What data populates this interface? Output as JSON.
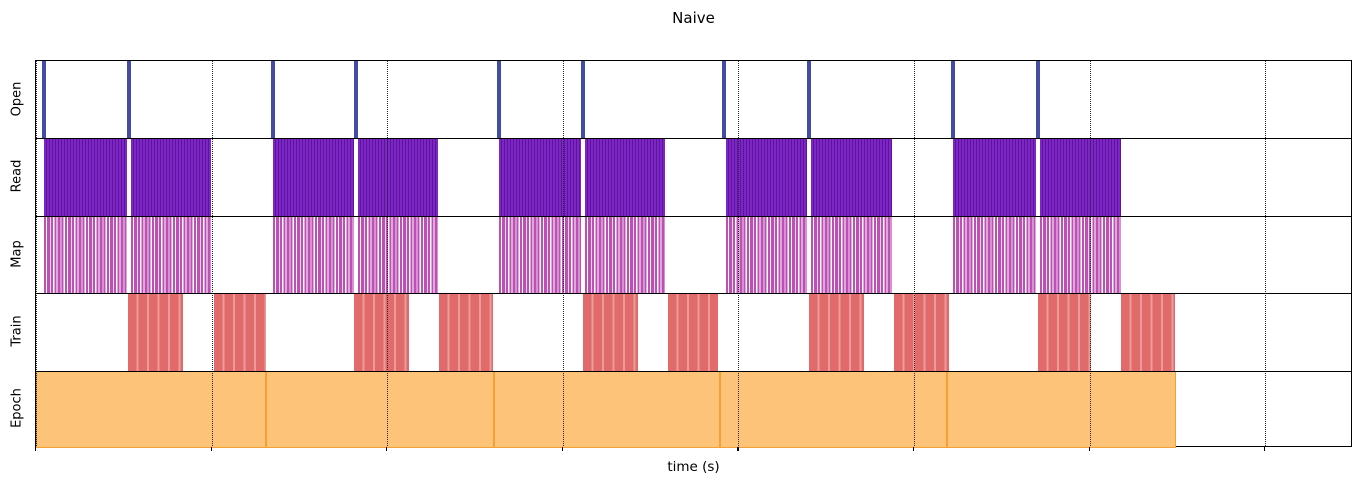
{
  "figure": {
    "title": "Naive",
    "xlabel": "time (s)"
  },
  "lanes": [
    "Open",
    "Read",
    "Map",
    "Train",
    "Epoch"
  ],
  "colors": {
    "open_event": "#454ca4",
    "read_fill": "#7c26c6",
    "read_stripe": "#5e129e",
    "map_fill": "#bc50b4",
    "train_fill": "#e16b6b",
    "train_stripe": "#ec9b9b",
    "epoch_fill": "#fdc379",
    "epoch_border": "#f5a033",
    "grid": "#2a2a2a",
    "axis": "#000000"
  },
  "chart_data": {
    "type": "bar",
    "subtype": "broken-bar timeline (gantt-style, matplotlib)",
    "title": "Naive",
    "xlabel": "time (s)",
    "ylabel": "",
    "x_units": "grid-tick units (axis ticks shown without numeric labels)",
    "xlim": [
      0,
      7.5
    ],
    "xticks": [
      0,
      1,
      2,
      3,
      4,
      5,
      6,
      7
    ],
    "xtick_labels": [
      "",
      "",
      "",
      "",
      "",
      "",
      "",
      ""
    ],
    "grid": "vertical dotted lines at each x tick",
    "legend": "none",
    "rows": [
      {
        "label": "Open",
        "style": "instant-event-bars",
        "events": [
          0.046,
          0.53,
          1.35,
          1.823,
          2.637,
          3.115,
          3.919,
          4.403,
          5.223,
          5.707
        ]
      },
      {
        "label": "Read",
        "style": "dense-purple-stripe-blocks",
        "intervals": [
          [
            0.046,
            0.518
          ],
          [
            0.541,
            0.997
          ],
          [
            1.35,
            1.811
          ],
          [
            1.834,
            2.289
          ],
          [
            2.637,
            3.104
          ],
          [
            3.127,
            3.582
          ],
          [
            3.93,
            4.391
          ],
          [
            4.414,
            4.875
          ],
          [
            5.223,
            5.696
          ],
          [
            5.718,
            6.18
          ]
        ]
      },
      {
        "label": "Map",
        "style": "barcode-orchid-stripe-blocks",
        "intervals": [
          [
            0.046,
            0.518
          ],
          [
            0.541,
            0.997
          ],
          [
            1.35,
            1.811
          ],
          [
            1.834,
            2.289
          ],
          [
            2.637,
            3.104
          ],
          [
            3.127,
            3.582
          ],
          [
            3.93,
            4.391
          ],
          [
            4.414,
            4.875
          ],
          [
            5.223,
            5.696
          ],
          [
            5.718,
            6.18
          ]
        ]
      },
      {
        "label": "Train",
        "style": "solid-red-blocks",
        "intervals": [
          [
            0.524,
            0.837
          ],
          [
            1.014,
            1.31
          ],
          [
            1.811,
            2.124
          ],
          [
            2.295,
            2.602
          ],
          [
            3.115,
            3.429
          ],
          [
            3.6,
            3.884
          ],
          [
            4.403,
            4.716
          ],
          [
            4.887,
            5.2
          ],
          [
            5.707,
            6.009
          ],
          [
            6.18,
            6.487
          ]
        ]
      },
      {
        "label": "Epoch",
        "style": "contiguous-orange-segments",
        "intervals": [
          [
            0.0,
            1.31
          ],
          [
            1.31,
            2.608
          ],
          [
            2.608,
            3.895
          ],
          [
            3.895,
            5.189
          ],
          [
            5.189,
            6.493
          ]
        ]
      }
    ]
  }
}
